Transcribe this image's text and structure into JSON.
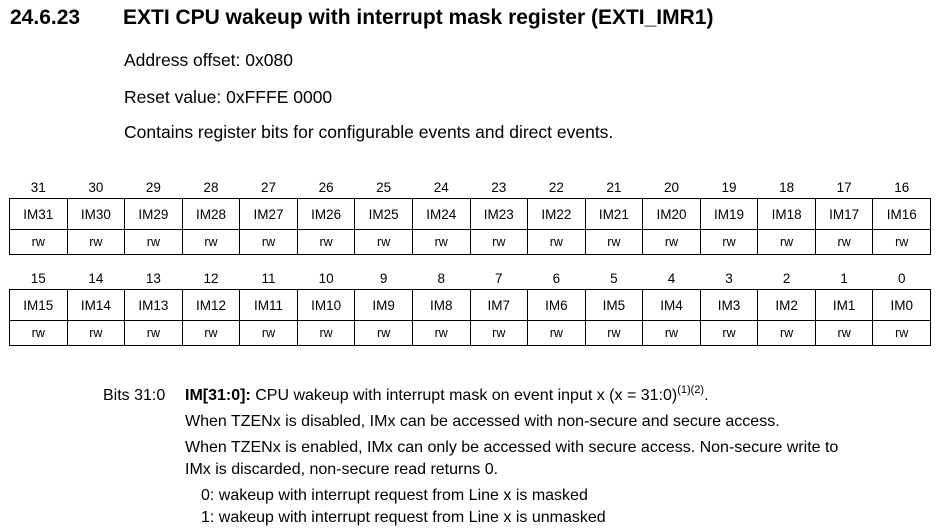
{
  "section": {
    "number": "24.6.23",
    "title": "EXTI CPU wakeup with interrupt mask register (EXTI_IMR1)"
  },
  "address_offset": "Address offset: 0x080",
  "reset_value": "Reset value: 0xFFFE 0000",
  "summary": "Contains register bits for configurable events and direct events.",
  "register": {
    "upper": {
      "bit_numbers": [
        "31",
        "30",
        "29",
        "28",
        "27",
        "26",
        "25",
        "24",
        "23",
        "22",
        "21",
        "20",
        "19",
        "18",
        "17",
        "16"
      ],
      "fields": [
        "IM31",
        "IM30",
        "IM29",
        "IM28",
        "IM27",
        "IM26",
        "IM25",
        "IM24",
        "IM23",
        "IM22",
        "IM21",
        "IM20",
        "IM19",
        "IM18",
        "IM17",
        "IM16"
      ],
      "access": [
        "rw",
        "rw",
        "rw",
        "rw",
        "rw",
        "rw",
        "rw",
        "rw",
        "rw",
        "rw",
        "rw",
        "rw",
        "rw",
        "rw",
        "rw",
        "rw"
      ]
    },
    "lower": {
      "bit_numbers": [
        "15",
        "14",
        "13",
        "12",
        "11",
        "10",
        "9",
        "8",
        "7",
        "6",
        "5",
        "4",
        "3",
        "2",
        "1",
        "0"
      ],
      "fields": [
        "IM15",
        "IM14",
        "IM13",
        "IM12",
        "IM11",
        "IM10",
        "IM9",
        "IM8",
        "IM7",
        "IM6",
        "IM5",
        "IM4",
        "IM3",
        "IM2",
        "IM1",
        "IM0"
      ],
      "access": [
        "rw",
        "rw",
        "rw",
        "rw",
        "rw",
        "rw",
        "rw",
        "rw",
        "rw",
        "rw",
        "rw",
        "rw",
        "rw",
        "rw",
        "rw",
        "rw"
      ]
    }
  },
  "description": {
    "bits_label": "Bits 31:0",
    "field_name": "IM[31:0]:",
    "field_text": " CPU wakeup with interrupt mask on event input x (x = 31:0)",
    "footnote_refs": "(1)(2)",
    "field_end": ".",
    "line2": "When TZENx is disabled, IMx can be accessed with non-secure and secure access.",
    "line3": "When TZENx is enabled, IMx can only be accessed with secure access. Non-secure write to",
    "line4": "IMx is discarded, non-secure read returns 0.",
    "option0": "0: wakeup with interrupt request from Line x is masked",
    "option1": "1: wakeup with interrupt request from Line x is unmasked"
  }
}
